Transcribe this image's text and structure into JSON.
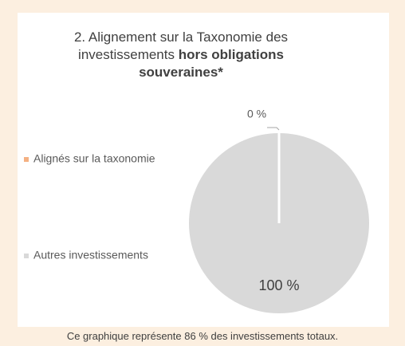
{
  "chart_data": {
    "type": "pie",
    "title": {
      "text": "2. Alignement sur la Taxonomie des investissements",
      "bold": "hors obligations souveraines*"
    },
    "categories": [
      "Alignés sur la taxonomie",
      "Autres investissements"
    ],
    "values": [
      0,
      100
    ],
    "value_labels": [
      "0 %",
      "100 %"
    ],
    "colors": [
      "#f4b183",
      "#d9d9d9"
    ],
    "note": "Ce graphique représente 86 % des investissements totaux."
  }
}
